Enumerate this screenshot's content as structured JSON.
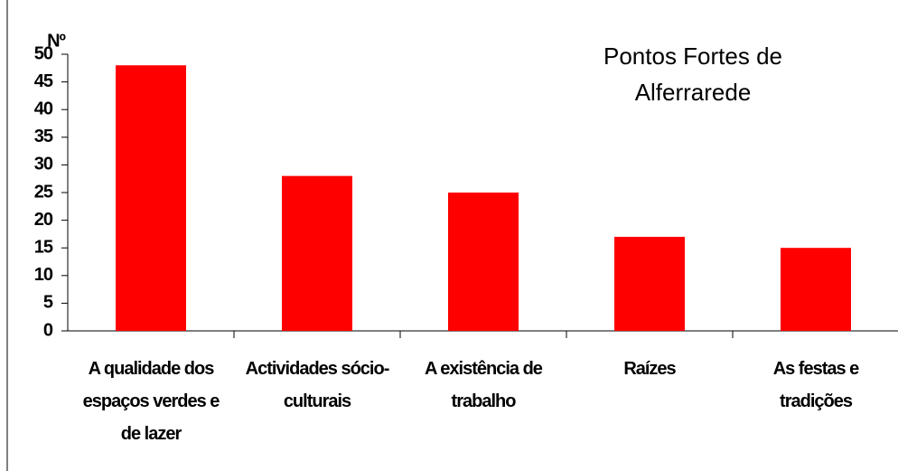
{
  "chart_data": {
    "type": "bar",
    "title": "Pontos Fortes de Alferrarede",
    "ylabel": "Nº",
    "categories": [
      "A qualidade dos espaços verdes e de lazer",
      "Actividades sócio-culturais",
      "A existência de trabalho",
      "Raízes",
      "As festas e tradições"
    ],
    "values": [
      48,
      28,
      25,
      17,
      15
    ],
    "color": "#ff0000",
    "ylim": [
      0,
      50
    ],
    "yticks": [
      0,
      5,
      10,
      15,
      20,
      25,
      30,
      35,
      40,
      45,
      50
    ],
    "grid": false
  }
}
